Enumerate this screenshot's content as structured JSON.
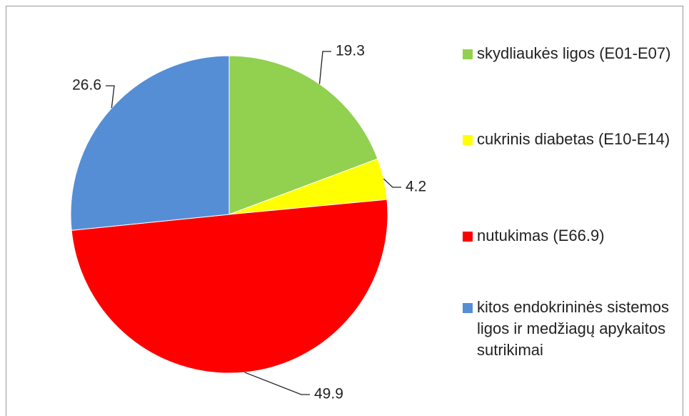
{
  "chart_data": {
    "type": "pie",
    "categories": [
      "skydliaukės ligos (E01-E07)",
      "cukrinis diabetas (E10-E14)",
      "nutukimas (E66.9)",
      "kitos endokrininės sistemos ligos ir medžiagų apykaitos sutrikimai"
    ],
    "values": [
      19.3,
      4.2,
      49.9,
      26.6
    ],
    "colors": [
      "#92d050",
      "#ffff00",
      "#ff0000",
      "#558ed5"
    ],
    "legend": "right"
  }
}
